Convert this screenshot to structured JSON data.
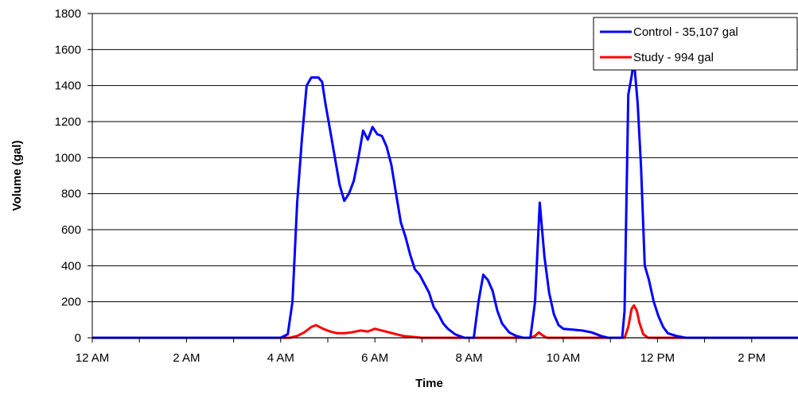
{
  "chart_data": {
    "type": "line",
    "title": "",
    "xlabel": "Time",
    "ylabel": "Volume (gal)",
    "x_unit": "hours after midnight",
    "xlim": [
      0,
      16
    ],
    "ylim": [
      0,
      1800
    ],
    "y_ticks": [
      0,
      200,
      400,
      600,
      800,
      1000,
      1200,
      1400,
      1600,
      1800
    ],
    "x_ticks": [
      {
        "value": 0,
        "label": "12 AM"
      },
      {
        "value": 2,
        "label": "2 AM"
      },
      {
        "value": 4,
        "label": "4 AM"
      },
      {
        "value": 6,
        "label": "6 AM"
      },
      {
        "value": 8,
        "label": "8 AM"
      },
      {
        "value": 10,
        "label": "10 AM"
      },
      {
        "value": 12,
        "label": "12 PM"
      },
      {
        "value": 14,
        "label": "2 PM"
      }
    ],
    "grid": "horizontal",
    "legend_position": "top-right",
    "series": [
      {
        "name": "Control - 35,107 gal",
        "color": "#0000ff",
        "points": [
          [
            0,
            0
          ],
          [
            4.0,
            0
          ],
          [
            4.15,
            20
          ],
          [
            4.25,
            200
          ],
          [
            4.35,
            750
          ],
          [
            4.45,
            1100
          ],
          [
            4.55,
            1400
          ],
          [
            4.65,
            1445
          ],
          [
            4.8,
            1445
          ],
          [
            4.88,
            1420
          ],
          [
            4.95,
            1300
          ],
          [
            5.05,
            1150
          ],
          [
            5.15,
            1000
          ],
          [
            5.25,
            850
          ],
          [
            5.35,
            760
          ],
          [
            5.45,
            800
          ],
          [
            5.55,
            870
          ],
          [
            5.65,
            1000
          ],
          [
            5.75,
            1150
          ],
          [
            5.85,
            1100
          ],
          [
            5.95,
            1170
          ],
          [
            6.05,
            1130
          ],
          [
            6.15,
            1120
          ],
          [
            6.25,
            1060
          ],
          [
            6.35,
            960
          ],
          [
            6.45,
            800
          ],
          [
            6.55,
            640
          ],
          [
            6.65,
            560
          ],
          [
            6.75,
            460
          ],
          [
            6.85,
            380
          ],
          [
            6.95,
            350
          ],
          [
            7.05,
            300
          ],
          [
            7.15,
            250
          ],
          [
            7.25,
            170
          ],
          [
            7.35,
            130
          ],
          [
            7.45,
            80
          ],
          [
            7.55,
            50
          ],
          [
            7.7,
            20
          ],
          [
            7.9,
            0
          ],
          [
            8.1,
            0
          ],
          [
            8.2,
            200
          ],
          [
            8.3,
            350
          ],
          [
            8.4,
            320
          ],
          [
            8.5,
            260
          ],
          [
            8.6,
            150
          ],
          [
            8.7,
            80
          ],
          [
            8.85,
            30
          ],
          [
            9.0,
            10
          ],
          [
            9.15,
            0
          ],
          [
            9.3,
            0
          ],
          [
            9.4,
            200
          ],
          [
            9.5,
            750
          ],
          [
            9.6,
            450
          ],
          [
            9.7,
            250
          ],
          [
            9.8,
            130
          ],
          [
            9.9,
            70
          ],
          [
            10.0,
            50
          ],
          [
            10.2,
            45
          ],
          [
            10.4,
            40
          ],
          [
            10.6,
            30
          ],
          [
            10.8,
            10
          ],
          [
            10.95,
            0
          ],
          [
            11.25,
            0
          ],
          [
            11.3,
            150
          ],
          [
            11.38,
            1350
          ],
          [
            11.45,
            1450
          ],
          [
            11.5,
            1540
          ],
          [
            11.58,
            1300
          ],
          [
            11.65,
            950
          ],
          [
            11.73,
            400
          ],
          [
            11.82,
            320
          ],
          [
            11.92,
            200
          ],
          [
            12.02,
            120
          ],
          [
            12.12,
            60
          ],
          [
            12.22,
            25
          ],
          [
            12.4,
            10
          ],
          [
            12.6,
            0
          ],
          [
            16,
            0
          ]
        ]
      },
      {
        "name": "Study - 994 gal",
        "color": "#ff0000",
        "points": [
          [
            0,
            0
          ],
          [
            4.2,
            0
          ],
          [
            4.35,
            10
          ],
          [
            4.5,
            30
          ],
          [
            4.65,
            60
          ],
          [
            4.75,
            70
          ],
          [
            4.9,
            50
          ],
          [
            5.05,
            35
          ],
          [
            5.2,
            25
          ],
          [
            5.35,
            25
          ],
          [
            5.5,
            30
          ],
          [
            5.7,
            40
          ],
          [
            5.85,
            35
          ],
          [
            6.0,
            50
          ],
          [
            6.15,
            40
          ],
          [
            6.3,
            30
          ],
          [
            6.45,
            20
          ],
          [
            6.6,
            10
          ],
          [
            6.8,
            5
          ],
          [
            7.0,
            0
          ],
          [
            9.3,
            0
          ],
          [
            9.4,
            10
          ],
          [
            9.48,
            30
          ],
          [
            9.55,
            15
          ],
          [
            9.65,
            0
          ],
          [
            11.3,
            0
          ],
          [
            11.38,
            60
          ],
          [
            11.45,
            160
          ],
          [
            11.5,
            180
          ],
          [
            11.56,
            150
          ],
          [
            11.62,
            80
          ],
          [
            11.7,
            20
          ],
          [
            11.8,
            0
          ],
          [
            16,
            0
          ]
        ]
      }
    ]
  }
}
